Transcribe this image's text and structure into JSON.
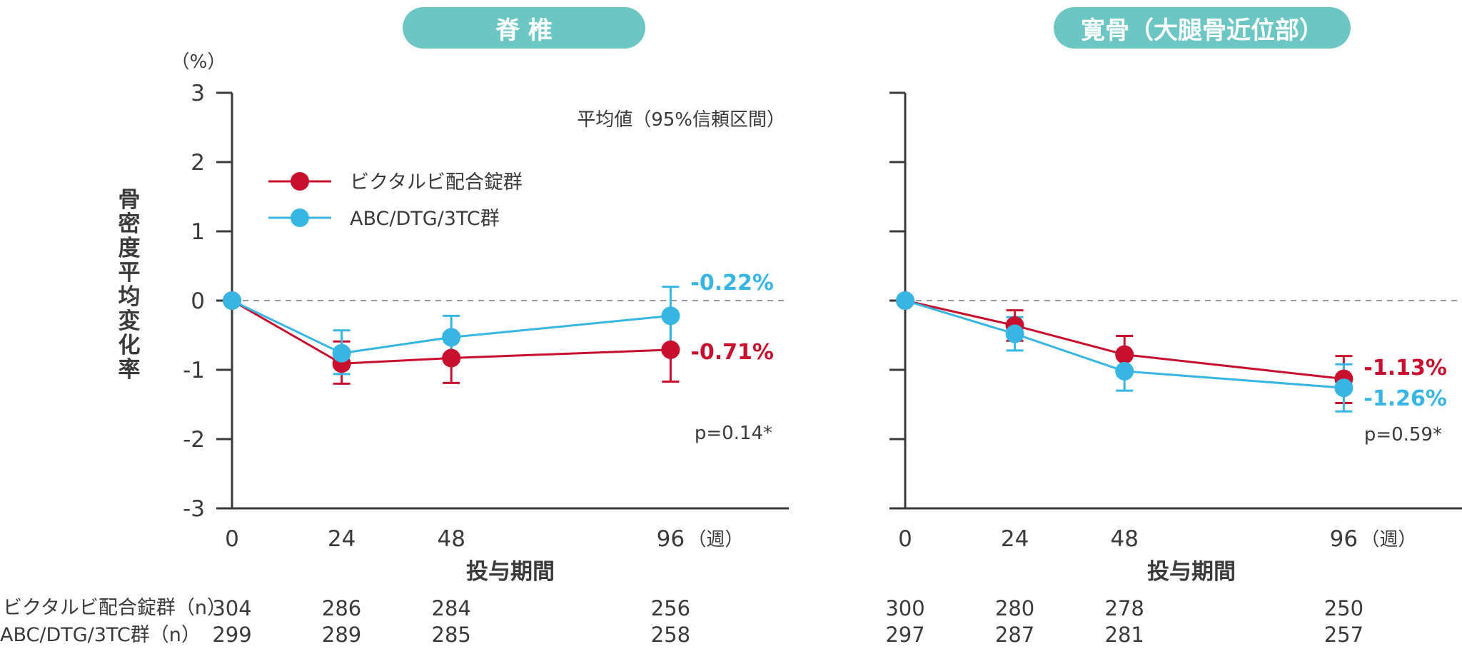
{
  "colors": {
    "bik": "#c8102e",
    "abc": "#38b6e3",
    "title_bg": "#6cc7c4",
    "axis": "#3a3a3a",
    "zero_line": "#999999"
  },
  "y_unit": "（%）",
  "y_title": "骨密度平均変化率",
  "legend_note": "平均値（95%信頼区間）",
  "x_unit": "（週）",
  "x_title": "投与期間",
  "n_row_labels": [
    "ビクタルビ配合錠群（n）",
    "ABC/DTG/3TC群（n）"
  ],
  "chart_data": [
    {
      "type": "line",
      "title": "脊 椎",
      "x": [
        0,
        24,
        48,
        96
      ],
      "x_ticks": [
        "0",
        "24",
        "48",
        "96"
      ],
      "ylim": [
        -3,
        3
      ],
      "y_ticks": [
        "3",
        "2",
        "1",
        "0",
        "-1",
        "-2",
        "-3"
      ],
      "series": [
        {
          "name": "ビクタルビ配合錠群",
          "values": [
            0,
            -0.91,
            -0.83,
            -0.71
          ],
          "ci_low": [
            0,
            -1.2,
            -1.19,
            -1.17
          ],
          "ci_high": [
            0,
            -0.59,
            -0.48,
            -0.25
          ],
          "end_label": "-0.71%"
        },
        {
          "name": "ABC/DTG/3TC群",
          "values": [
            0,
            -0.76,
            -0.53,
            -0.22
          ],
          "ci_low": [
            0,
            -1.06,
            -0.88,
            -0.66
          ],
          "ci_high": [
            0,
            -0.43,
            -0.22,
            0.2
          ],
          "end_label": "-0.22%"
        }
      ],
      "p_value": "p=0.14*",
      "n_at_risk": [
        [
          "304",
          "286",
          "284",
          "256"
        ],
        [
          "299",
          "289",
          "285",
          "258"
        ]
      ]
    },
    {
      "type": "line",
      "title": "寛骨（大腿骨近位部）",
      "x": [
        0,
        24,
        48,
        96
      ],
      "x_ticks": [
        "0",
        "24",
        "48",
        "96"
      ],
      "ylim": [
        -3,
        3
      ],
      "series": [
        {
          "name": "ビクタルビ配合錠群",
          "values": [
            0,
            -0.36,
            -0.78,
            -1.13
          ],
          "ci_low": [
            0,
            -0.58,
            -1.05,
            -1.48
          ],
          "ci_high": [
            0,
            -0.14,
            -0.51,
            -0.8
          ],
          "end_label": "-1.13%"
        },
        {
          "name": "ABC/DTG/3TC群",
          "values": [
            0,
            -0.48,
            -1.02,
            -1.26
          ],
          "ci_low": [
            0,
            -0.72,
            -1.3,
            -1.6
          ],
          "ci_high": [
            0,
            -0.24,
            -0.74,
            -0.92
          ],
          "end_label": "-1.26%"
        }
      ],
      "p_value": "p=0.59*",
      "n_at_risk": [
        [
          "300",
          "280",
          "278",
          "250"
        ],
        [
          "297",
          "287",
          "281",
          "257"
        ]
      ]
    }
  ]
}
